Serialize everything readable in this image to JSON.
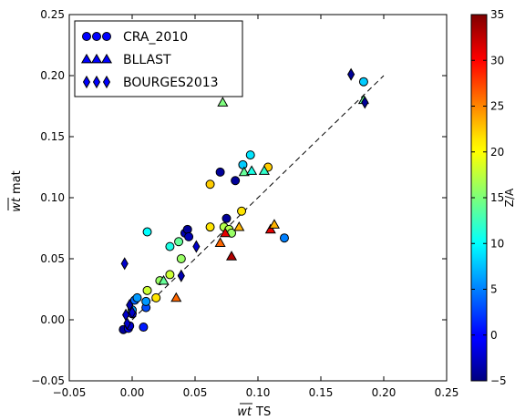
{
  "chart_data": {
    "type": "scatter",
    "xlabel_math": "wt",
    "xlabel_text": "TS",
    "ylabel_math": "wt",
    "ylabel_text": "mat",
    "xlim": [
      -0.05,
      0.25
    ],
    "ylim": [
      -0.05,
      0.25
    ],
    "xticks": [
      -0.05,
      0.0,
      0.05,
      0.1,
      0.15,
      0.2,
      0.25
    ],
    "xtick_labels": [
      "−0.05",
      "0.00",
      "0.05",
      "0.10",
      "0.15",
      "0.20",
      "0.25"
    ],
    "yticks": [
      -0.05,
      0.0,
      0.05,
      0.1,
      0.15,
      0.2,
      0.25
    ],
    "ytick_labels": [
      "−0.05",
      "0.00",
      "0.05",
      "0.10",
      "0.15",
      "0.20",
      "0.25"
    ],
    "grid": false,
    "legend_position": "top-left",
    "reference_line": {
      "style": "dashed",
      "from": [
        0.0,
        0.0
      ],
      "to": [
        0.2,
        0.2
      ]
    },
    "colorbar": {
      "label": "Z/A",
      "range": [
        -5,
        35
      ],
      "ticks": [
        -5,
        0,
        5,
        10,
        15,
        20,
        25,
        30,
        35
      ],
      "tick_labels": [
        "−5",
        "0",
        "5",
        "10",
        "15",
        "20",
        "25",
        "30",
        "35"
      ],
      "colormap": "jet"
    },
    "series": [
      {
        "name": "CRA_2010",
        "marker": "circle",
        "points": [
          {
            "x": -0.007,
            "y": -0.008,
            "c": -4
          },
          {
            "x": -0.003,
            "y": -0.007,
            "c": 0
          },
          {
            "x": -0.002,
            "y": -0.005,
            "c": -2
          },
          {
            "x": 0.0,
            "y": 0.005,
            "c": 0
          },
          {
            "x": 0.0,
            "y": 0.008,
            "c": 6
          },
          {
            "x": 0.002,
            "y": 0.016,
            "c": 4
          },
          {
            "x": 0.004,
            "y": 0.018,
            "c": 6
          },
          {
            "x": 0.009,
            "y": -0.006,
            "c": 1
          },
          {
            "x": 0.011,
            "y": 0.01,
            "c": 3
          },
          {
            "x": 0.011,
            "y": 0.015,
            "c": 6
          },
          {
            "x": 0.012,
            "y": 0.024,
            "c": 18
          },
          {
            "x": 0.012,
            "y": 0.072,
            "c": 10
          },
          {
            "x": 0.019,
            "y": 0.018,
            "c": 21
          },
          {
            "x": 0.022,
            "y": 0.032,
            "c": 16
          },
          {
            "x": 0.03,
            "y": 0.037,
            "c": 18
          },
          {
            "x": 0.03,
            "y": 0.06,
            "c": 11
          },
          {
            "x": 0.037,
            "y": 0.064,
            "c": 14
          },
          {
            "x": 0.039,
            "y": 0.05,
            "c": 16
          },
          {
            "x": 0.042,
            "y": 0.071,
            "c": -3
          },
          {
            "x": 0.044,
            "y": 0.074,
            "c": -4
          },
          {
            "x": 0.045,
            "y": 0.068,
            "c": -3
          },
          {
            "x": 0.062,
            "y": 0.111,
            "c": 22
          },
          {
            "x": 0.062,
            "y": 0.076,
            "c": 21
          },
          {
            "x": 0.07,
            "y": 0.121,
            "c": -4
          },
          {
            "x": 0.073,
            "y": 0.076,
            "c": 17
          },
          {
            "x": 0.075,
            "y": 0.083,
            "c": -4
          },
          {
            "x": 0.077,
            "y": 0.074,
            "c": 17
          },
          {
            "x": 0.079,
            "y": 0.071,
            "c": 16
          },
          {
            "x": 0.082,
            "y": 0.114,
            "c": -4
          },
          {
            "x": 0.087,
            "y": 0.089,
            "c": 21
          },
          {
            "x": 0.088,
            "y": 0.127,
            "c": 8
          },
          {
            "x": 0.094,
            "y": 0.135,
            "c": 9
          },
          {
            "x": 0.108,
            "y": 0.125,
            "c": 22
          },
          {
            "x": 0.121,
            "y": 0.067,
            "c": 5
          },
          {
            "x": 0.184,
            "y": 0.195,
            "c": 8
          }
        ]
      },
      {
        "name": "BLLAST",
        "marker": "triangle",
        "points": [
          {
            "x": 0.025,
            "y": 0.032,
            "c": 14
          },
          {
            "x": 0.035,
            "y": 0.018,
            "c": 26
          },
          {
            "x": 0.07,
            "y": 0.063,
            "c": 26
          },
          {
            "x": 0.072,
            "y": 0.178,
            "c": 15
          },
          {
            "x": 0.074,
            "y": 0.071,
            "c": 31
          },
          {
            "x": 0.079,
            "y": 0.052,
            "c": 33
          },
          {
            "x": 0.085,
            "y": 0.076,
            "c": 23
          },
          {
            "x": 0.089,
            "y": 0.121,
            "c": 14
          },
          {
            "x": 0.095,
            "y": 0.122,
            "c": 11
          },
          {
            "x": 0.105,
            "y": 0.122,
            "c": 12
          },
          {
            "x": 0.11,
            "y": 0.074,
            "c": 31
          },
          {
            "x": 0.113,
            "y": 0.078,
            "c": 23
          },
          {
            "x": 0.184,
            "y": 0.18,
            "c": 14
          }
        ]
      },
      {
        "name": "BOURGES2013",
        "marker": "diamond",
        "points": [
          {
            "x": -0.006,
            "y": 0.046,
            "c": -2
          },
          {
            "x": -0.005,
            "y": 0.004,
            "c": -2
          },
          {
            "x": -0.004,
            "y": -0.003,
            "c": -2
          },
          {
            "x": -0.002,
            "y": 0.012,
            "c": -3
          },
          {
            "x": 0.0,
            "y": 0.006,
            "c": -2
          },
          {
            "x": 0.039,
            "y": 0.036,
            "c": -3
          },
          {
            "x": 0.051,
            "y": 0.06,
            "c": -2
          },
          {
            "x": 0.174,
            "y": 0.201,
            "c": -4
          },
          {
            "x": 0.185,
            "y": 0.178,
            "c": -4
          }
        ]
      }
    ]
  }
}
